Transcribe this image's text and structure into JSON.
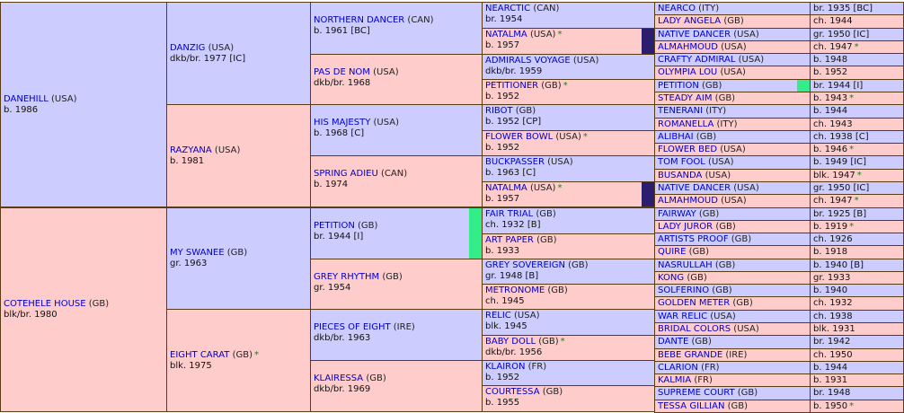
{
  "colors": {
    "male": "#ccccff",
    "female": "#ffcccc",
    "border": "#5a3c14",
    "name": "#0000cc",
    "star": "#0a8a0a",
    "dup_natalma": "#2b1e6e",
    "dup_petition": "#33ee88"
  },
  "sire_side": {
    "horse": {
      "name": "DANEHILL",
      "country": "(USA)",
      "info": "b. 1986"
    },
    "sire": {
      "name": "DANZIG",
      "country": "(USA)",
      "info": "dkb/br. 1977 [IC]"
    },
    "dam": {
      "name": "RAZYANA",
      "country": "(USA)",
      "info": "b. 1981"
    }
  },
  "dam_side": {
    "horse": {
      "name": "COTEHELE HOUSE",
      "country": "(GB)",
      "info": "blk/br. 1980"
    },
    "sire": {
      "name": "MY SWANEE",
      "country": "(GB)",
      "info": "gr. 1963"
    },
    "dam": {
      "name": "EIGHT CARAT",
      "country": "(GB)",
      "star": "*",
      "info": "blk. 1975"
    }
  },
  "gen3": [
    {
      "name": "NORTHERN DANCER",
      "country": "(CAN)",
      "info": "b. 1961 [BC]"
    },
    {
      "name": "PAS DE NOM",
      "country": "(USA)",
      "info": "dkb/br. 1968"
    },
    {
      "name": "HIS MAJESTY",
      "country": "(USA)",
      "info": "b. 1968 [C]"
    },
    {
      "name": "SPRING ADIEU",
      "country": "(CAN)",
      "info": "b. 1974"
    },
    {
      "name": "PETITION",
      "country": "(GB)",
      "info": "br. 1944 [I]"
    },
    {
      "name": "GREY RHYTHM",
      "country": "(GB)",
      "info": "gr. 1954"
    },
    {
      "name": "PIECES OF EIGHT",
      "country": "(IRE)",
      "info": "dkb/br. 1963"
    },
    {
      "name": "KLAIRESSA",
      "country": "(GB)",
      "info": "dkb/br. 1969"
    }
  ],
  "gen4": [
    {
      "name": "NEARCTIC",
      "country": "(CAN)",
      "info": "br. 1954",
      "star": ""
    },
    {
      "name": "NATALMA",
      "country": "(USA)",
      "info": "b. 1957",
      "star": "*"
    },
    {
      "name": "ADMIRALS VOYAGE",
      "country": "(USA)",
      "info": "dkb/br. 1959",
      "star": ""
    },
    {
      "name": "PETITIONER",
      "country": "(GB)",
      "info": "b. 1952",
      "star": "*"
    },
    {
      "name": "RIBOT",
      "country": "(GB)",
      "info": "b. 1952 [CP]",
      "star": ""
    },
    {
      "name": "FLOWER BOWL",
      "country": "(USA)",
      "info": "b. 1952",
      "star": "*"
    },
    {
      "name": "BUCKPASSER",
      "country": "(USA)",
      "info": "b. 1963 [C]",
      "star": ""
    },
    {
      "name": "NATALMA",
      "country": "(USA)",
      "info": "b. 1957",
      "star": "*"
    },
    {
      "name": "FAIR TRIAL",
      "country": "(GB)",
      "info": "ch. 1932 [B]",
      "star": ""
    },
    {
      "name": "ART PAPER",
      "country": "(GB)",
      "info": "b. 1933",
      "star": ""
    },
    {
      "name": "GREY SOVEREIGN",
      "country": "(GB)",
      "info": "gr. 1948 [B]",
      "star": ""
    },
    {
      "name": "METRONOME",
      "country": "(GB)",
      "info": "ch. 1945",
      "star": ""
    },
    {
      "name": "RELIC",
      "country": "(USA)",
      "info": "blk. 1945",
      "star": ""
    },
    {
      "name": "BABY DOLL",
      "country": "(GB)",
      "info": "dkb/br. 1956",
      "star": "*"
    },
    {
      "name": "KLAIRON",
      "country": "(FR)",
      "info": "b. 1952",
      "star": ""
    },
    {
      "name": "COURTESSA",
      "country": "(GB)",
      "info": "b. 1955",
      "star": ""
    }
  ],
  "gen5": [
    {
      "name": "NEARCO",
      "country": "(ITY)",
      "info": "br. 1935 [BC]",
      "star": ""
    },
    {
      "name": "LADY ANGELA",
      "country": "(GB)",
      "info": "ch. 1944",
      "star": ""
    },
    {
      "name": "NATIVE DANCER",
      "country": "(USA)",
      "info": "gr. 1950 [IC]",
      "star": ""
    },
    {
      "name": "ALMAHMOUD",
      "country": "(USA)",
      "info": "ch. 1947",
      "star": "*"
    },
    {
      "name": "CRAFTY ADMIRAL",
      "country": "(USA)",
      "info": "b. 1948",
      "star": ""
    },
    {
      "name": "OLYMPIA LOU",
      "country": "(USA)",
      "info": "b. 1952",
      "star": ""
    },
    {
      "name": "PETITION",
      "country": "(GB)",
      "info": "br. 1944 [I]",
      "star": ""
    },
    {
      "name": "STEADY AIM",
      "country": "(GB)",
      "info": "b. 1943",
      "star": "*"
    },
    {
      "name": "TENERANI",
      "country": "(ITY)",
      "info": "b. 1944",
      "star": ""
    },
    {
      "name": "ROMANELLA",
      "country": "(ITY)",
      "info": "ch. 1943",
      "star": ""
    },
    {
      "name": "ALIBHAI",
      "country": "(GB)",
      "info": "ch. 1938 [C]",
      "star": ""
    },
    {
      "name": "FLOWER BED",
      "country": "(USA)",
      "info": "b. 1946",
      "star": "*"
    },
    {
      "name": "TOM FOOL",
      "country": "(USA)",
      "info": "b. 1949 [IC]",
      "star": ""
    },
    {
      "name": "BUSANDA",
      "country": "(USA)",
      "info": "blk. 1947",
      "star": "*"
    },
    {
      "name": "NATIVE DANCER",
      "country": "(USA)",
      "info": "gr. 1950 [IC]",
      "star": ""
    },
    {
      "name": "ALMAHMOUD",
      "country": "(USA)",
      "info": "ch. 1947",
      "star": "*"
    },
    {
      "name": "FAIRWAY",
      "country": "(GB)",
      "info": "br. 1925 [B]",
      "star": ""
    },
    {
      "name": "LADY JUROR",
      "country": "(GB)",
      "info": "b. 1919",
      "star": "*"
    },
    {
      "name": "ARTISTS PROOF",
      "country": "(GB)",
      "info": "ch. 1926",
      "star": ""
    },
    {
      "name": "QUIRE",
      "country": "(GB)",
      "info": "b. 1918",
      "star": ""
    },
    {
      "name": "NASRULLAH",
      "country": "(GB)",
      "info": "b. 1940 [B]",
      "star": ""
    },
    {
      "name": "KONG",
      "country": "(GB)",
      "info": "gr. 1933",
      "star": ""
    },
    {
      "name": "SOLFERINO",
      "country": "(GB)",
      "info": "b. 1940",
      "star": ""
    },
    {
      "name": "GOLDEN METER",
      "country": "(GB)",
      "info": "ch. 1932",
      "star": ""
    },
    {
      "name": "WAR RELIC",
      "country": "(USA)",
      "info": "ch. 1938",
      "star": ""
    },
    {
      "name": "BRIDAL COLORS",
      "country": "(USA)",
      "info": "blk. 1931",
      "star": ""
    },
    {
      "name": "DANTE",
      "country": "(GB)",
      "info": "br. 1942",
      "star": ""
    },
    {
      "name": "BEBE GRANDE",
      "country": "(IRE)",
      "info": "ch. 1950",
      "star": ""
    },
    {
      "name": "CLARION",
      "country": "(FR)",
      "info": "b. 1944",
      "star": ""
    },
    {
      "name": "KALMIA",
      "country": "(FR)",
      "info": "b. 1931",
      "star": ""
    },
    {
      "name": "SUPREME COURT",
      "country": "(GB)",
      "info": "br. 1948",
      "star": ""
    },
    {
      "name": "TESSA GILLIAN",
      "country": "(GB)",
      "info": "b. 1950",
      "star": "*"
    }
  ]
}
